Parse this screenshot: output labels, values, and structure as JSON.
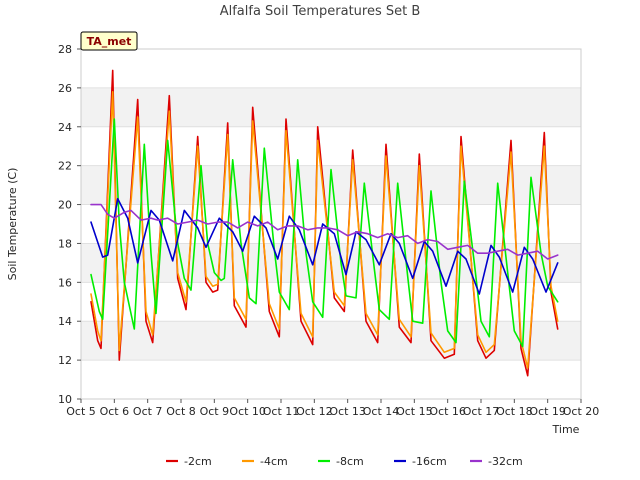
{
  "chart_data": {
    "type": "line",
    "title": "Alfalfa Soil Temperatures Set B",
    "xlabel": "Time",
    "ylabel": "Soil Temperature (C)",
    "badge": "TA_met",
    "xlim": [
      5,
      20
    ],
    "ylim": [
      10,
      28
    ],
    "x_ticks": [
      5,
      6,
      7,
      8,
      9,
      10,
      11,
      12,
      13,
      14,
      15,
      16,
      17,
      18,
      19,
      20
    ],
    "x_tick_labels": [
      "Oct 5",
      "Oct 6",
      "Oct 7",
      "Oct 8",
      "Oct 9",
      "Oct 10",
      "Oct 11",
      "Oct 12",
      "Oct 13",
      "Oct 14",
      "Oct 15",
      "Oct 16",
      "Oct 17",
      "Oct 18",
      "Oct 19",
      "Oct 20"
    ],
    "y_ticks": [
      10,
      12,
      14,
      16,
      18,
      20,
      22,
      24,
      26,
      28
    ],
    "y_tick_labels": [
      "10",
      "12",
      "14",
      "16",
      "18",
      "20",
      "22",
      "24",
      "26",
      "28"
    ],
    "grid": "horizontal bands",
    "legend_position": "bottom",
    "series": [
      {
        "name": "-2cm",
        "color": "#dd0000",
        "x": [
          5.3,
          5.5,
          5.6,
          5.95,
          6.15,
          6.7,
          6.95,
          7.15,
          7.65,
          7.9,
          8.15,
          8.5,
          8.75,
          8.95,
          9.1,
          9.4,
          9.6,
          9.95,
          10.15,
          10.65,
          10.95,
          11.15,
          11.6,
          11.95,
          12.1,
          12.6,
          12.9,
          13.15,
          13.55,
          13.9,
          14.15,
          14.55,
          14.9,
          15.15,
          15.5,
          15.9,
          16.2,
          16.4,
          16.9,
          17.15,
          17.4,
          17.9,
          18.2,
          18.4,
          18.9,
          19.1,
          19.3
        ],
        "y": [
          15.0,
          13.0,
          12.6,
          26.9,
          12.0,
          25.4,
          14.0,
          12.9,
          25.6,
          16.2,
          14.6,
          23.5,
          16.0,
          15.5,
          15.6,
          24.2,
          14.8,
          13.7,
          25.0,
          14.5,
          13.2,
          24.4,
          14.0,
          12.8,
          24.0,
          15.2,
          14.5,
          22.8,
          14.0,
          12.9,
          23.1,
          13.7,
          12.9,
          22.6,
          13.0,
          12.1,
          12.3,
          23.5,
          13.0,
          12.1,
          12.5,
          23.3,
          12.6,
          11.2,
          23.7,
          15.5,
          13.6
        ]
      },
      {
        "name": "-4cm",
        "color": "#ff9900",
        "x": [
          5.3,
          5.5,
          5.6,
          5.95,
          6.15,
          6.7,
          6.95,
          7.15,
          7.65,
          7.9,
          8.15,
          8.5,
          8.75,
          8.95,
          9.1,
          9.4,
          9.6,
          9.95,
          10.15,
          10.65,
          10.95,
          11.15,
          11.6,
          11.95,
          12.1,
          12.6,
          12.9,
          13.15,
          13.55,
          13.9,
          14.15,
          14.55,
          14.9,
          15.15,
          15.5,
          15.9,
          16.2,
          16.4,
          16.9,
          17.15,
          17.4,
          17.9,
          18.2,
          18.4,
          18.9,
          19.1,
          19.3
        ],
        "y": [
          15.4,
          13.5,
          13.0,
          25.8,
          12.5,
          24.5,
          14.5,
          13.3,
          24.8,
          16.5,
          15.0,
          23.0,
          16.3,
          15.8,
          15.9,
          23.6,
          15.2,
          14.1,
          24.3,
          14.9,
          13.6,
          23.8,
          14.4,
          13.2,
          23.3,
          15.5,
          14.8,
          22.3,
          14.4,
          13.3,
          22.5,
          14.1,
          13.2,
          22.0,
          13.4,
          12.4,
          12.6,
          23.0,
          13.3,
          12.4,
          12.8,
          22.7,
          13.0,
          11.6,
          23.0,
          15.8,
          14.0
        ]
      },
      {
        "name": "-8cm",
        "color": "#00ee00",
        "x": [
          5.3,
          5.55,
          5.65,
          6.0,
          6.15,
          6.3,
          6.6,
          6.9,
          7.1,
          7.25,
          7.6,
          7.9,
          8.1,
          8.3,
          8.6,
          8.8,
          9.0,
          9.2,
          9.3,
          9.55,
          9.8,
          10.05,
          10.25,
          10.5,
          10.8,
          10.95,
          11.25,
          11.5,
          11.75,
          11.95,
          12.25,
          12.5,
          12.8,
          12.95,
          13.25,
          13.5,
          13.8,
          13.95,
          14.25,
          14.5,
          14.8,
          14.95,
          15.25,
          15.5,
          15.8,
          16.0,
          16.25,
          16.5,
          16.8,
          17.0,
          17.25,
          17.5,
          17.8,
          18.0,
          18.25,
          18.5,
          18.8,
          19.0,
          19.3
        ],
        "y": [
          16.4,
          14.5,
          14.1,
          24.4,
          19.0,
          16.0,
          13.6,
          23.1,
          17.5,
          14.4,
          23.3,
          18.0,
          16.2,
          15.6,
          22.0,
          18.0,
          16.5,
          16.1,
          16.2,
          22.3,
          18.0,
          15.2,
          14.9,
          22.9,
          17.7,
          15.5,
          14.6,
          22.3,
          17.5,
          15.0,
          14.2,
          21.8,
          17.0,
          15.3,
          15.2,
          21.1,
          16.7,
          14.6,
          14.1,
          21.1,
          16.3,
          14.0,
          13.9,
          20.7,
          16.0,
          13.5,
          12.9,
          21.2,
          17.0,
          14.0,
          13.2,
          21.1,
          16.5,
          13.5,
          12.7,
          21.4,
          17.5,
          15.8,
          15.0
        ]
      },
      {
        "name": "-16cm",
        "color": "#0000cc",
        "x": [
          5.3,
          5.65,
          5.8,
          6.1,
          6.4,
          6.7,
          7.1,
          7.35,
          7.75,
          8.1,
          8.5,
          8.75,
          9.15,
          9.55,
          9.85,
          10.2,
          10.55,
          10.9,
          11.25,
          11.55,
          11.95,
          12.25,
          12.6,
          12.95,
          13.25,
          13.55,
          13.95,
          14.3,
          14.55,
          14.95,
          15.3,
          15.55,
          15.95,
          16.3,
          16.55,
          16.95,
          17.3,
          17.55,
          17.95,
          18.3,
          18.55,
          18.95,
          19.3
        ],
        "y": [
          19.1,
          17.3,
          17.4,
          20.3,
          19.3,
          17.0,
          19.7,
          19.2,
          17.1,
          19.7,
          18.8,
          17.8,
          19.3,
          18.6,
          17.6,
          19.4,
          18.8,
          17.2,
          19.4,
          18.7,
          16.9,
          19.0,
          18.5,
          16.4,
          18.6,
          18.2,
          16.9,
          18.5,
          18.0,
          16.2,
          18.1,
          17.6,
          15.8,
          17.6,
          17.2,
          15.4,
          17.9,
          17.3,
          15.5,
          17.8,
          17.2,
          15.5,
          17.0
        ]
      },
      {
        "name": "-32cm",
        "color": "#9933cc",
        "x": [
          5.3,
          5.6,
          5.8,
          6.0,
          6.3,
          6.5,
          6.8,
          7.1,
          7.3,
          7.6,
          7.9,
          8.2,
          8.5,
          8.8,
          9.1,
          9.4,
          9.7,
          10.0,
          10.3,
          10.6,
          10.9,
          11.2,
          11.5,
          11.8,
          12.1,
          12.4,
          12.7,
          13.0,
          13.3,
          13.6,
          13.9,
          14.2,
          14.5,
          14.8,
          15.1,
          15.4,
          15.7,
          16.0,
          16.3,
          16.6,
          16.9,
          17.2,
          17.5,
          17.8,
          18.1,
          18.4,
          18.7,
          19.0,
          19.3
        ],
        "y": [
          20.0,
          20.0,
          19.5,
          19.3,
          19.6,
          19.7,
          19.2,
          19.3,
          19.2,
          19.3,
          19.0,
          19.1,
          19.2,
          19.0,
          19.1,
          19.1,
          18.8,
          19.1,
          18.9,
          19.1,
          18.7,
          18.9,
          18.9,
          18.7,
          18.8,
          18.8,
          18.7,
          18.4,
          18.6,
          18.5,
          18.3,
          18.5,
          18.3,
          18.4,
          18.0,
          18.2,
          18.1,
          17.7,
          17.8,
          17.9,
          17.5,
          17.5,
          17.6,
          17.7,
          17.4,
          17.5,
          17.6,
          17.2,
          17.4
        ]
      }
    ]
  }
}
